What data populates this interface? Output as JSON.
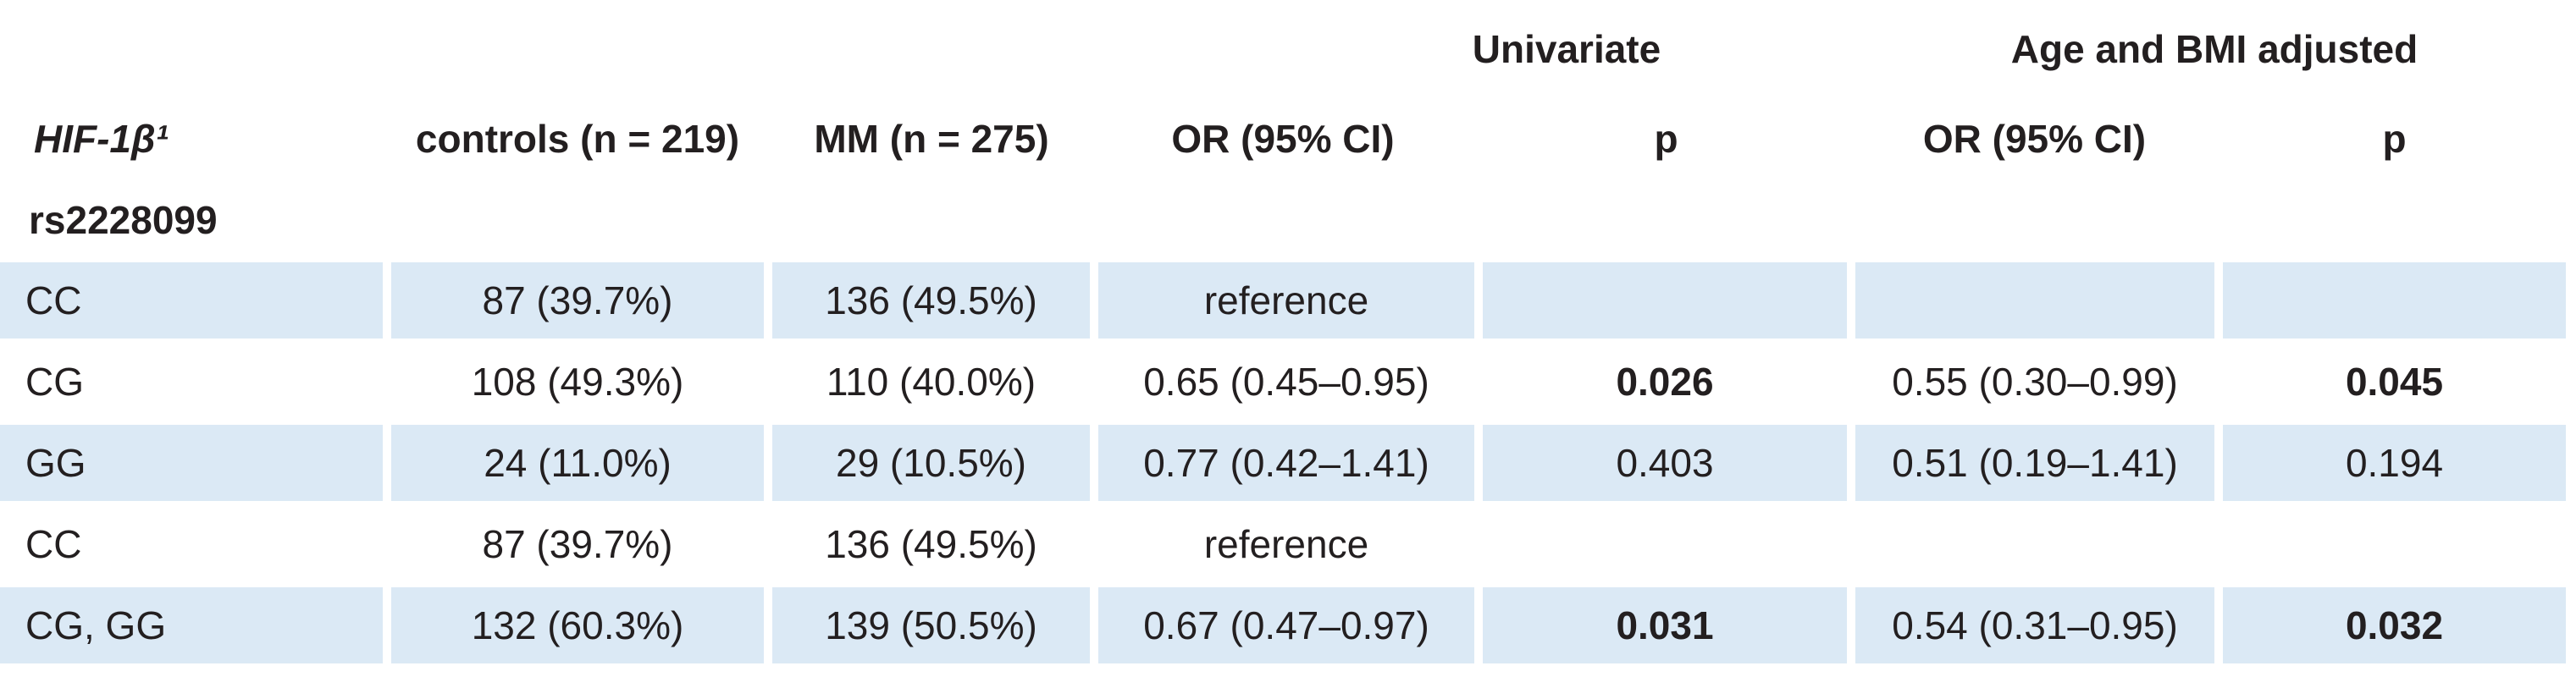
{
  "table": {
    "group_headers": {
      "univariate": "Univariate",
      "adjusted": "Age and BMI adjusted"
    },
    "columns": {
      "gene": "HIF-1β¹",
      "controls": "controls (n = 219)",
      "mm": "MM (n = 275)",
      "or_uni": "OR (95% CI)",
      "p_uni": "p",
      "or_adj": "OR (95% CI)",
      "p_adj": "p"
    },
    "snp": "rs2228099",
    "rows": [
      {
        "genotype": "CC",
        "controls": "87 (39.7%)",
        "mm": "136 (49.5%)",
        "or_uni": "reference",
        "p_uni": "",
        "or_adj": "",
        "p_adj": "",
        "shaded": true
      },
      {
        "genotype": "CG",
        "controls": "108 (49.3%)",
        "mm": "110 (40.0%)",
        "or_uni": "0.65 (0.45–0.95)",
        "p_uni": "0.026",
        "or_adj": "0.55 (0.30–0.99)",
        "p_adj": "0.045",
        "shaded": false,
        "p_bold": true
      },
      {
        "genotype": "GG",
        "controls": "24 (11.0%)",
        "mm": "29 (10.5%)",
        "or_uni": "0.77 (0.42–1.41)",
        "p_uni": "0.403",
        "or_adj": "0.51 (0.19–1.41)",
        "p_adj": "0.194",
        "shaded": true
      },
      {
        "genotype": "CC",
        "controls": "87 (39.7%)",
        "mm": "136 (49.5%)",
        "or_uni": "reference",
        "p_uni": "",
        "or_adj": "",
        "p_adj": "",
        "shaded": false
      },
      {
        "genotype": "CG, GG",
        "controls": "132 (60.3%)",
        "mm": "139 (50.5%)",
        "or_uni": "0.67 (0.47–0.97)",
        "p_uni": "0.031",
        "or_adj": "0.54 (0.31–0.95)",
        "p_adj": "0.032",
        "shaded": true,
        "p_bold": true
      }
    ]
  }
}
